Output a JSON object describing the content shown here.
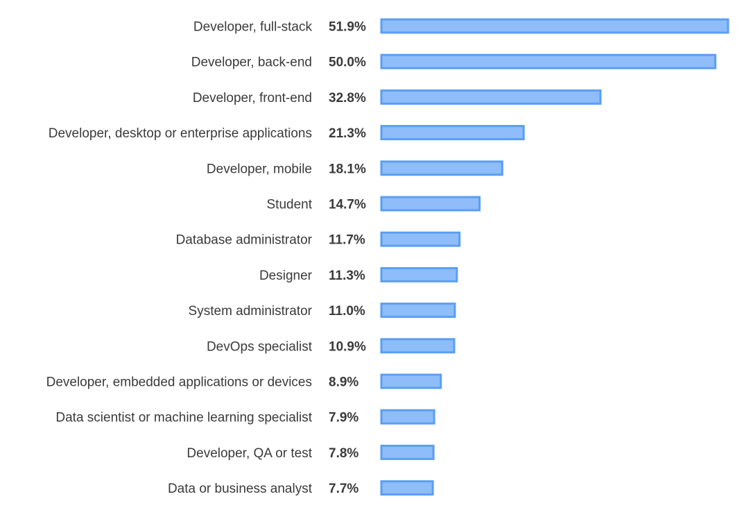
{
  "chart_data": {
    "type": "bar",
    "orientation": "horizontal",
    "categories": [
      "Developer, full-stack",
      "Developer, back-end",
      "Developer, front-end",
      "Developer, desktop or enterprise applications",
      "Developer, mobile",
      "Student",
      "Database administrator",
      "Designer",
      "System administrator",
      "DevOps specialist",
      "Developer, embedded applications or devices",
      "Data scientist or machine learning specialist",
      "Developer, QA or test",
      "Data or business analyst"
    ],
    "values": [
      51.9,
      50.0,
      32.8,
      21.3,
      18.1,
      14.7,
      11.7,
      11.3,
      11.0,
      10.9,
      8.9,
      7.9,
      7.8,
      7.7
    ],
    "value_labels": [
      "51.9%",
      "50.0%",
      "32.8%",
      "21.3%",
      "18.1%",
      "14.7%",
      "11.7%",
      "11.3%",
      "11.0%",
      "10.9%",
      "8.9%",
      "7.9%",
      "7.8%",
      "7.7%"
    ],
    "title": "",
    "xlabel": "",
    "ylabel": "",
    "xlim": [
      0,
      51.9
    ],
    "grid": false,
    "legend": "none",
    "colors": {
      "bar_fill": "#8fbdfa",
      "bar_stroke": "#5a9ef2",
      "text": "#3a3a3a"
    }
  }
}
